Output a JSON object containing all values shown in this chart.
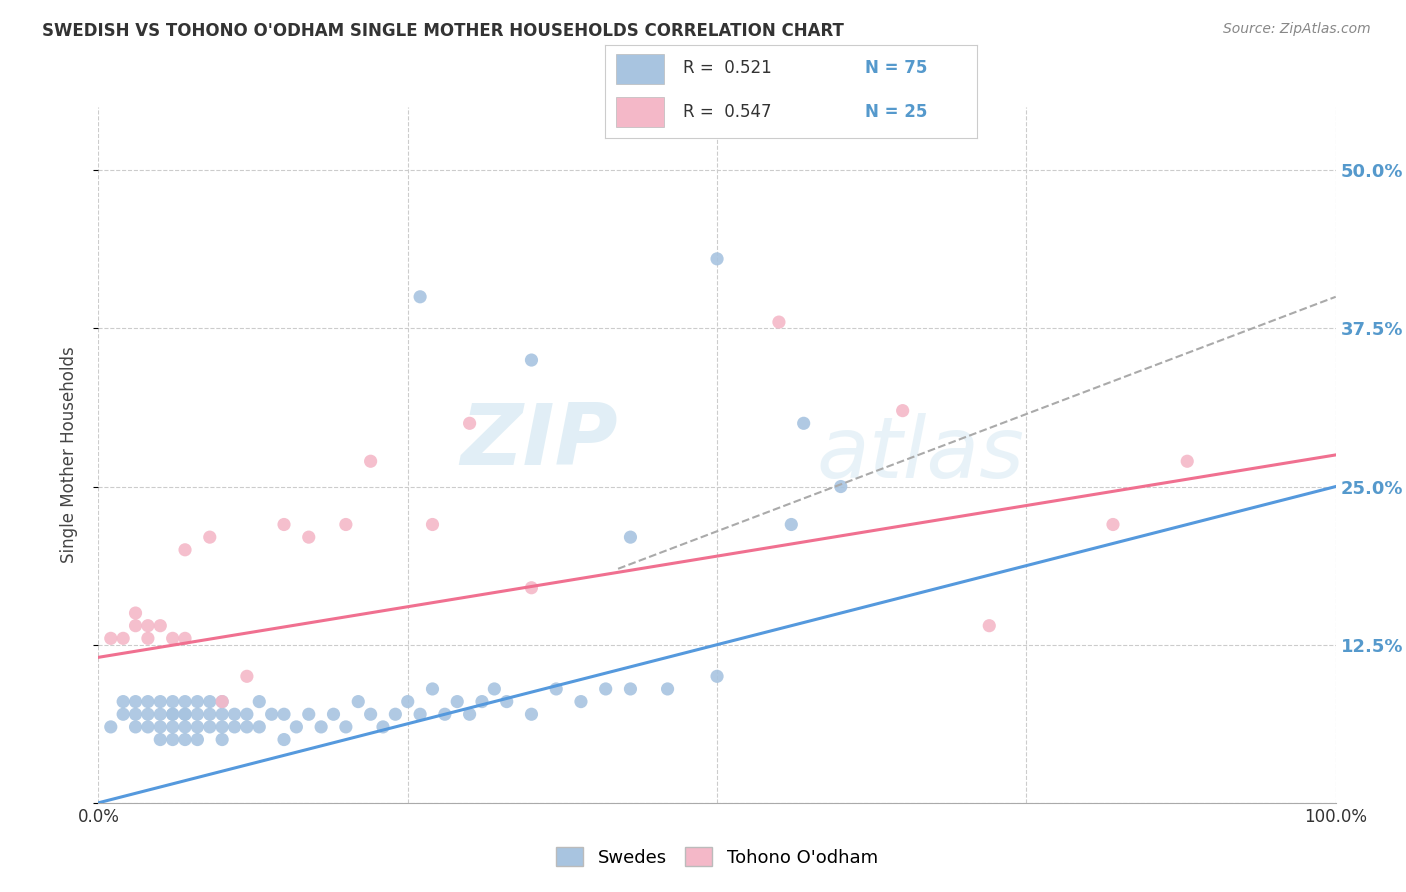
{
  "title": "SWEDISH VS TOHONO O'ODHAM SINGLE MOTHER HOUSEHOLDS CORRELATION CHART",
  "source": "Source: ZipAtlas.com",
  "ylabel": "Single Mother Households",
  "xlim": [
    0,
    1.0
  ],
  "ylim": [
    0,
    0.55
  ],
  "x_ticks": [
    0.0,
    0.25,
    0.5,
    0.75,
    1.0
  ],
  "y_ticks": [
    0.0,
    0.125,
    0.25,
    0.375,
    0.5
  ],
  "y_tick_labels_right": [
    "",
    "12.5%",
    "25.0%",
    "37.5%",
    "50.0%"
  ],
  "swedes_color": "#a8c4e0",
  "tohono_color": "#f4b8c8",
  "swedes_line_color": "#5599dd",
  "tohono_line_color": "#f07090",
  "legend_label_swedes": "Swedes",
  "legend_label_tohono": "Tohono O'odham",
  "watermark_zip": "ZIP",
  "watermark_atlas": "atlas",
  "swedes_x": [
    0.01,
    0.02,
    0.02,
    0.03,
    0.03,
    0.03,
    0.04,
    0.04,
    0.04,
    0.05,
    0.05,
    0.05,
    0.05,
    0.06,
    0.06,
    0.06,
    0.06,
    0.06,
    0.07,
    0.07,
    0.07,
    0.07,
    0.07,
    0.08,
    0.08,
    0.08,
    0.08,
    0.09,
    0.09,
    0.09,
    0.1,
    0.1,
    0.1,
    0.1,
    0.11,
    0.11,
    0.12,
    0.12,
    0.13,
    0.13,
    0.14,
    0.15,
    0.15,
    0.16,
    0.17,
    0.18,
    0.19,
    0.2,
    0.21,
    0.22,
    0.23,
    0.24,
    0.25,
    0.26,
    0.27,
    0.28,
    0.29,
    0.3,
    0.31,
    0.32,
    0.33,
    0.35,
    0.37,
    0.39,
    0.41,
    0.43,
    0.46,
    0.5,
    0.26,
    0.43,
    0.56,
    0.6,
    0.57,
    0.5,
    0.35
  ],
  "swedes_y": [
    0.06,
    0.07,
    0.08,
    0.06,
    0.07,
    0.08,
    0.06,
    0.07,
    0.08,
    0.05,
    0.06,
    0.07,
    0.08,
    0.05,
    0.06,
    0.07,
    0.07,
    0.08,
    0.05,
    0.06,
    0.07,
    0.07,
    0.08,
    0.05,
    0.06,
    0.07,
    0.08,
    0.06,
    0.07,
    0.08,
    0.05,
    0.06,
    0.07,
    0.08,
    0.06,
    0.07,
    0.06,
    0.07,
    0.06,
    0.08,
    0.07,
    0.05,
    0.07,
    0.06,
    0.07,
    0.06,
    0.07,
    0.06,
    0.08,
    0.07,
    0.06,
    0.07,
    0.08,
    0.07,
    0.09,
    0.07,
    0.08,
    0.07,
    0.08,
    0.09,
    0.08,
    0.07,
    0.09,
    0.08,
    0.09,
    0.09,
    0.09,
    0.1,
    0.4,
    0.21,
    0.22,
    0.25,
    0.3,
    0.43,
    0.35
  ],
  "tohono_x": [
    0.01,
    0.02,
    0.03,
    0.03,
    0.04,
    0.05,
    0.06,
    0.07,
    0.09,
    0.1,
    0.12,
    0.15,
    0.17,
    0.2,
    0.22,
    0.27,
    0.3,
    0.35,
    0.55,
    0.65,
    0.72,
    0.82,
    0.88,
    0.07,
    0.04
  ],
  "tohono_y": [
    0.13,
    0.13,
    0.14,
    0.15,
    0.13,
    0.14,
    0.13,
    0.2,
    0.21,
    0.08,
    0.1,
    0.22,
    0.21,
    0.22,
    0.27,
    0.22,
    0.3,
    0.17,
    0.38,
    0.31,
    0.14,
    0.22,
    0.27,
    0.13,
    0.14
  ],
  "blue_line_x0": 0.0,
  "blue_line_y0": 0.0,
  "blue_line_x1": 1.0,
  "blue_line_y1": 0.25,
  "pink_line_x0": 0.0,
  "pink_line_y0": 0.115,
  "pink_line_x1": 1.0,
  "pink_line_y1": 0.275,
  "dash_line_x0": 0.42,
  "dash_line_y0": 0.185,
  "dash_line_x1": 1.0,
  "dash_line_y1": 0.4
}
